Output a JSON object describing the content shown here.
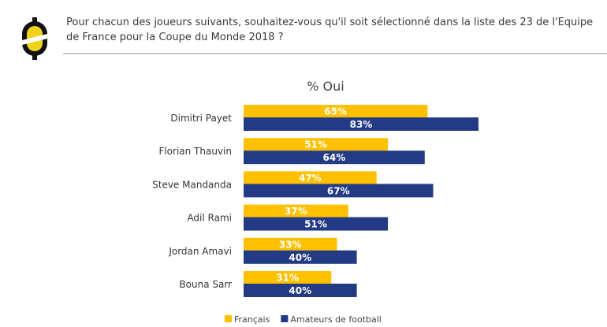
{
  "question": "Pour chacun des joueurs suivants, souhaitez-vous qu'il soit sélectionné dans la liste des 23 de l'Equipe de France pour la Coupe du Monde 2018 ?",
  "chart_data": {
    "type": "bar",
    "orientation": "horizontal",
    "title": "% Oui",
    "categories": [
      "Dimitri Payet",
      "Florian Thauvin",
      "Steve Mandanda",
      "Adil Rami",
      "Jordan Amavi",
      "Bouna Sarr"
    ],
    "series": [
      {
        "name": "Français",
        "values": [
          65,
          51,
          47,
          37,
          33,
          31
        ],
        "color": "#FFC000"
      },
      {
        "name": "Amateurs de football",
        "values": [
          83,
          64,
          67,
          51,
          40,
          40
        ],
        "color": "#233A84"
      }
    ],
    "value_suffix": "%",
    "grid": false,
    "legend": "bottom"
  }
}
